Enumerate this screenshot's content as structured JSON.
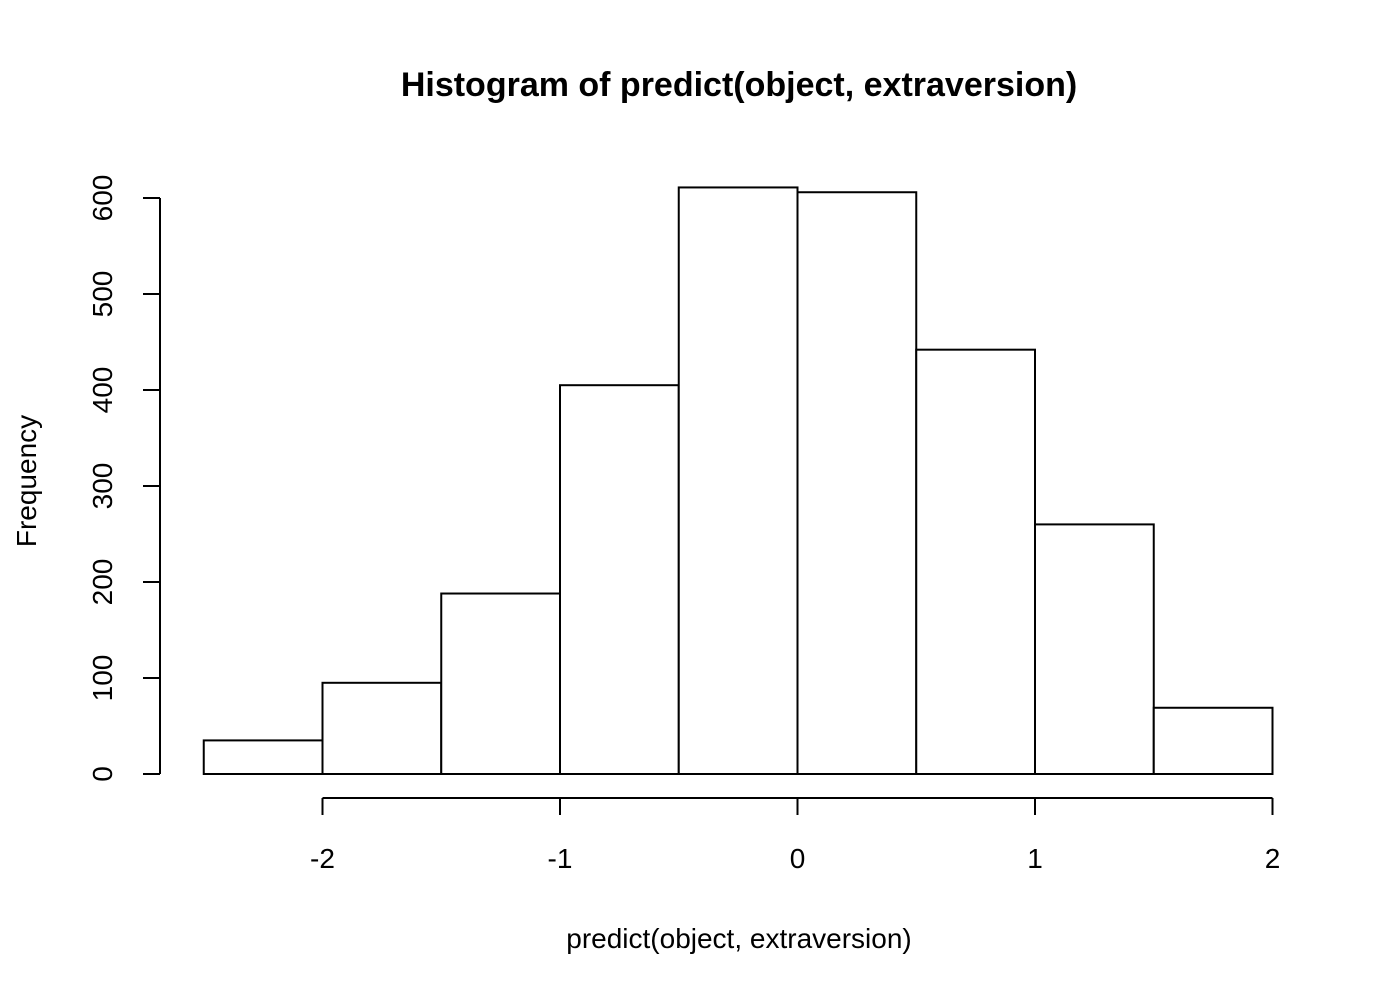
{
  "chart_data": {
    "type": "bar",
    "title": "Histogram of predict(object, extraversion)",
    "xlabel": "predict(object, extraversion)",
    "ylabel": "Frequency",
    "bins": [
      {
        "from": -2.5,
        "to": -2.0,
        "count": 35
      },
      {
        "from": -2.0,
        "to": -1.5,
        "count": 95
      },
      {
        "from": -1.5,
        "to": -1.0,
        "count": 188
      },
      {
        "from": -1.0,
        "to": -0.5,
        "count": 405
      },
      {
        "from": -0.5,
        "to": 0.0,
        "count": 611
      },
      {
        "from": 0.0,
        "to": 0.5,
        "count": 606
      },
      {
        "from": 0.5,
        "to": 1.0,
        "count": 442
      },
      {
        "from": 1.0,
        "to": 1.5,
        "count": 260
      },
      {
        "from": 1.5,
        "to": 2.0,
        "count": 69
      }
    ],
    "xlim": [
      -2.5,
      2.0
    ],
    "ylim": [
      0,
      600
    ],
    "x_ticks": [
      -2,
      -1,
      0,
      1,
      2
    ],
    "x_tick_labels": [
      "-2",
      "-1",
      "0",
      "1",
      "2"
    ],
    "y_ticks": [
      0,
      100,
      200,
      300,
      400,
      500,
      600
    ],
    "y_tick_labels": [
      "0",
      "100",
      "200",
      "300",
      "400",
      "500",
      "600"
    ],
    "grid": false,
    "legend": "none",
    "bar_fill": "#ffffff",
    "bar_stroke": "#000000"
  }
}
